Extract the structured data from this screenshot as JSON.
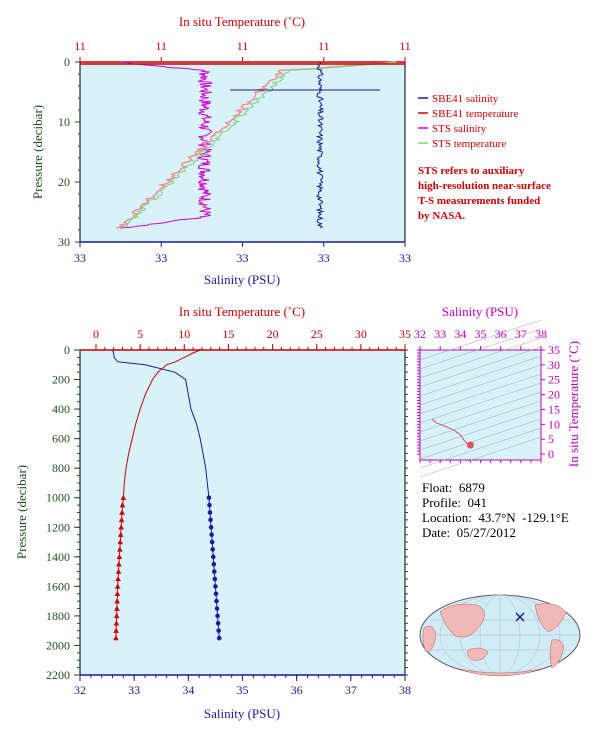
{
  "colors": {
    "plot_bg": "#d7f2f9",
    "salinity": "#1a1aa0",
    "temperature": "#cc0000",
    "sts_salinity": "#d200d2",
    "sts_temperature": "#7fd07f",
    "sts_temp_pink": "#f09090",
    "magenta_axis": "#c000c0",
    "green_axis": "#1f4f1f"
  },
  "top_panel": {
    "top_axis_title": "In situ Temperature (˚C)",
    "top_tick_labels": [
      "11",
      "11",
      "11",
      "11",
      "11"
    ],
    "bottom_axis_title": "Salinity (PSU)",
    "bottom_tick_labels": [
      "33",
      "33",
      "33",
      "33",
      "33"
    ],
    "left_axis_title": "Pressure (decibar)",
    "left_tick_labels": [
      "0",
      "10",
      "20",
      "30"
    ],
    "legend": [
      {
        "label": "SBE41 salinity",
        "color": "#1a1aa0"
      },
      {
        "label": "SBE41 temperature",
        "color": "#cc0000"
      },
      {
        "label": "STS salinity",
        "color": "#d200d2"
      },
      {
        "label": "STS temperature",
        "color": "#7fd07f"
      }
    ],
    "note_lines": [
      "STS refers to auxiliary",
      "high-resolution near-surface",
      "T-S measurements funded",
      "by NASA."
    ]
  },
  "main_panel": {
    "top_axis_title": "In situ Temperature (˚C)",
    "bottom_axis_title": "Salinity (PSU)",
    "left_axis_title": "Pressure (decibar)"
  },
  "ts_panel": {
    "top_axis_title": "Salinity (PSU)",
    "top_tick_labels": [
      "32",
      "33",
      "34",
      "35",
      "36",
      "37",
      "38"
    ],
    "right_axis_title": "In situ Temperature (˚C)",
    "right_tick_labels": [
      "35",
      "30",
      "25",
      "20",
      "15",
      "10",
      "5",
      "0"
    ]
  },
  "float_info": {
    "float": "Float:  6879",
    "profile": "Profile:  041",
    "location": "Location:  43.7°N  -129.1°E",
    "date": "Date:  05/27/2012"
  },
  "chart_data": [
    {
      "type": "line",
      "name": "main-profile",
      "xlabel": "Salinity (PSU)",
      "x2label": "In situ Temperature (˚C)",
      "ylabel": "Pressure (decibar)",
      "xlim": [
        32,
        38
      ],
      "x2lim": [
        0,
        35
      ],
      "ylim": [
        2200,
        0
      ],
      "xticks": [
        32,
        33,
        34,
        35,
        36,
        37,
        38
      ],
      "x2ticks": [
        0,
        5,
        10,
        15,
        20,
        25,
        30,
        35
      ],
      "yticks": [
        0,
        200,
        400,
        600,
        800,
        1000,
        1200,
        1400,
        1600,
        1800,
        2000,
        2200
      ],
      "series": [
        {
          "name": "SBE41 salinity",
          "axis": "bottom",
          "pressure": [
            0,
            20,
            50,
            80,
            100,
            150,
            200,
            300,
            400,
            500,
            600,
            700,
            800,
            900,
            1000
          ],
          "values": [
            32.6,
            32.62,
            32.63,
            32.7,
            33.2,
            33.75,
            33.95,
            34.0,
            34.05,
            34.15,
            34.22,
            34.27,
            34.32,
            34.35,
            34.38
          ]
        },
        {
          "name": "SBE41 salinity (bottle/profile points)",
          "axis": "bottom",
          "markers": "dot",
          "pressure": [
            1000,
            1050,
            1100,
            1150,
            1200,
            1250,
            1300,
            1350,
            1400,
            1450,
            1500,
            1550,
            1600,
            1650,
            1700,
            1750,
            1800,
            1850,
            1900,
            1950
          ],
          "values": [
            34.38,
            34.39,
            34.4,
            34.41,
            34.42,
            34.43,
            34.44,
            34.45,
            34.46,
            34.47,
            34.48,
            34.49,
            34.5,
            34.51,
            34.52,
            34.53,
            34.54,
            34.55,
            34.56,
            34.57
          ]
        },
        {
          "name": "SBE41 temperature",
          "axis": "top",
          "pressure": [
            0,
            20,
            50,
            80,
            100,
            150,
            200,
            300,
            400,
            500,
            600,
            700,
            800,
            900,
            1000
          ],
          "values": [
            11.8,
            11.0,
            10.0,
            9.0,
            8.0,
            7.0,
            6.4,
            5.6,
            5.0,
            4.5,
            4.1,
            3.7,
            3.4,
            3.2,
            3.1
          ]
        },
        {
          "name": "SBE41 temperature (profile points)",
          "axis": "top",
          "markers": "triangle",
          "pressure": [
            1000,
            1050,
            1100,
            1150,
            1200,
            1250,
            1300,
            1350,
            1400,
            1450,
            1500,
            1550,
            1600,
            1650,
            1700,
            1750,
            1800,
            1850,
            1900,
            1950
          ],
          "values": [
            3.1,
            3.0,
            2.95,
            2.9,
            2.85,
            2.8,
            2.75,
            2.7,
            2.65,
            2.6,
            2.55,
            2.5,
            2.45,
            2.42,
            2.4,
            2.37,
            2.34,
            2.31,
            2.28,
            2.25
          ]
        }
      ]
    },
    {
      "type": "line",
      "name": "ts-diagram",
      "xlabel": "Salinity (PSU)",
      "ylabel": "In situ Temperature (˚C)",
      "xlim": [
        32,
        38
      ],
      "ylim": [
        -2,
        35
      ],
      "xticks": [
        32,
        33,
        34,
        35,
        36,
        37,
        38
      ],
      "yticks": [
        0,
        5,
        10,
        15,
        20,
        25,
        30,
        35
      ],
      "series": [
        {
          "name": "T-S curve",
          "salinity": [
            32.6,
            32.8,
            33.2,
            33.7,
            34.0,
            34.1,
            34.2,
            34.3,
            34.4,
            34.5,
            34.57
          ],
          "temperature": [
            11.8,
            10.5,
            9.5,
            8.0,
            6.5,
            5.5,
            4.5,
            3.8,
            3.2,
            2.8,
            2.25
          ]
        }
      ]
    }
  ]
}
